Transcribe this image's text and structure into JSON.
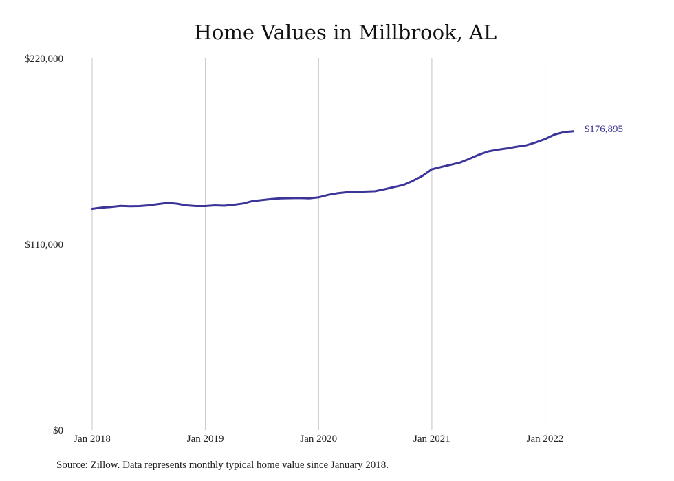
{
  "chart_data": {
    "type": "line",
    "title": "Home Values in Millbrook, AL",
    "xlabel": "",
    "ylabel": "",
    "ylim": [
      0,
      220000
    ],
    "y_ticks": [
      "$220,000",
      "$110,000",
      "$0"
    ],
    "y_tick_values": [
      220000,
      110000,
      0
    ],
    "x_ticks": [
      "Jan 2018",
      "Jan 2019",
      "Jan 2020",
      "Jan 2021",
      "Jan 2022"
    ],
    "x_tick_months": [
      0,
      12,
      24,
      36,
      48
    ],
    "grid": "vertical",
    "line_color": "#3b3499",
    "end_label": "$176,895",
    "series": [
      {
        "values": [
          131000,
          131700,
          132100,
          132700,
          132500,
          132600,
          133000,
          133800,
          134500,
          134000,
          133000,
          132600,
          132600,
          133000,
          132800,
          133400,
          134100,
          135600,
          136200,
          136800,
          137200,
          137300,
          137400,
          137200,
          137800,
          139200,
          140200,
          140800,
          141000,
          141200,
          141400,
          142600,
          143900,
          145100,
          147600,
          150500,
          154400,
          155800,
          157100,
          158400,
          160700,
          163100,
          165000,
          166000,
          166800,
          167800,
          168600,
          170300,
          172300,
          175000,
          176400,
          176895
        ]
      }
    ]
  },
  "footer": {
    "source": "Source: Zillow. Data represents monthly typical home value since January 2018."
  }
}
